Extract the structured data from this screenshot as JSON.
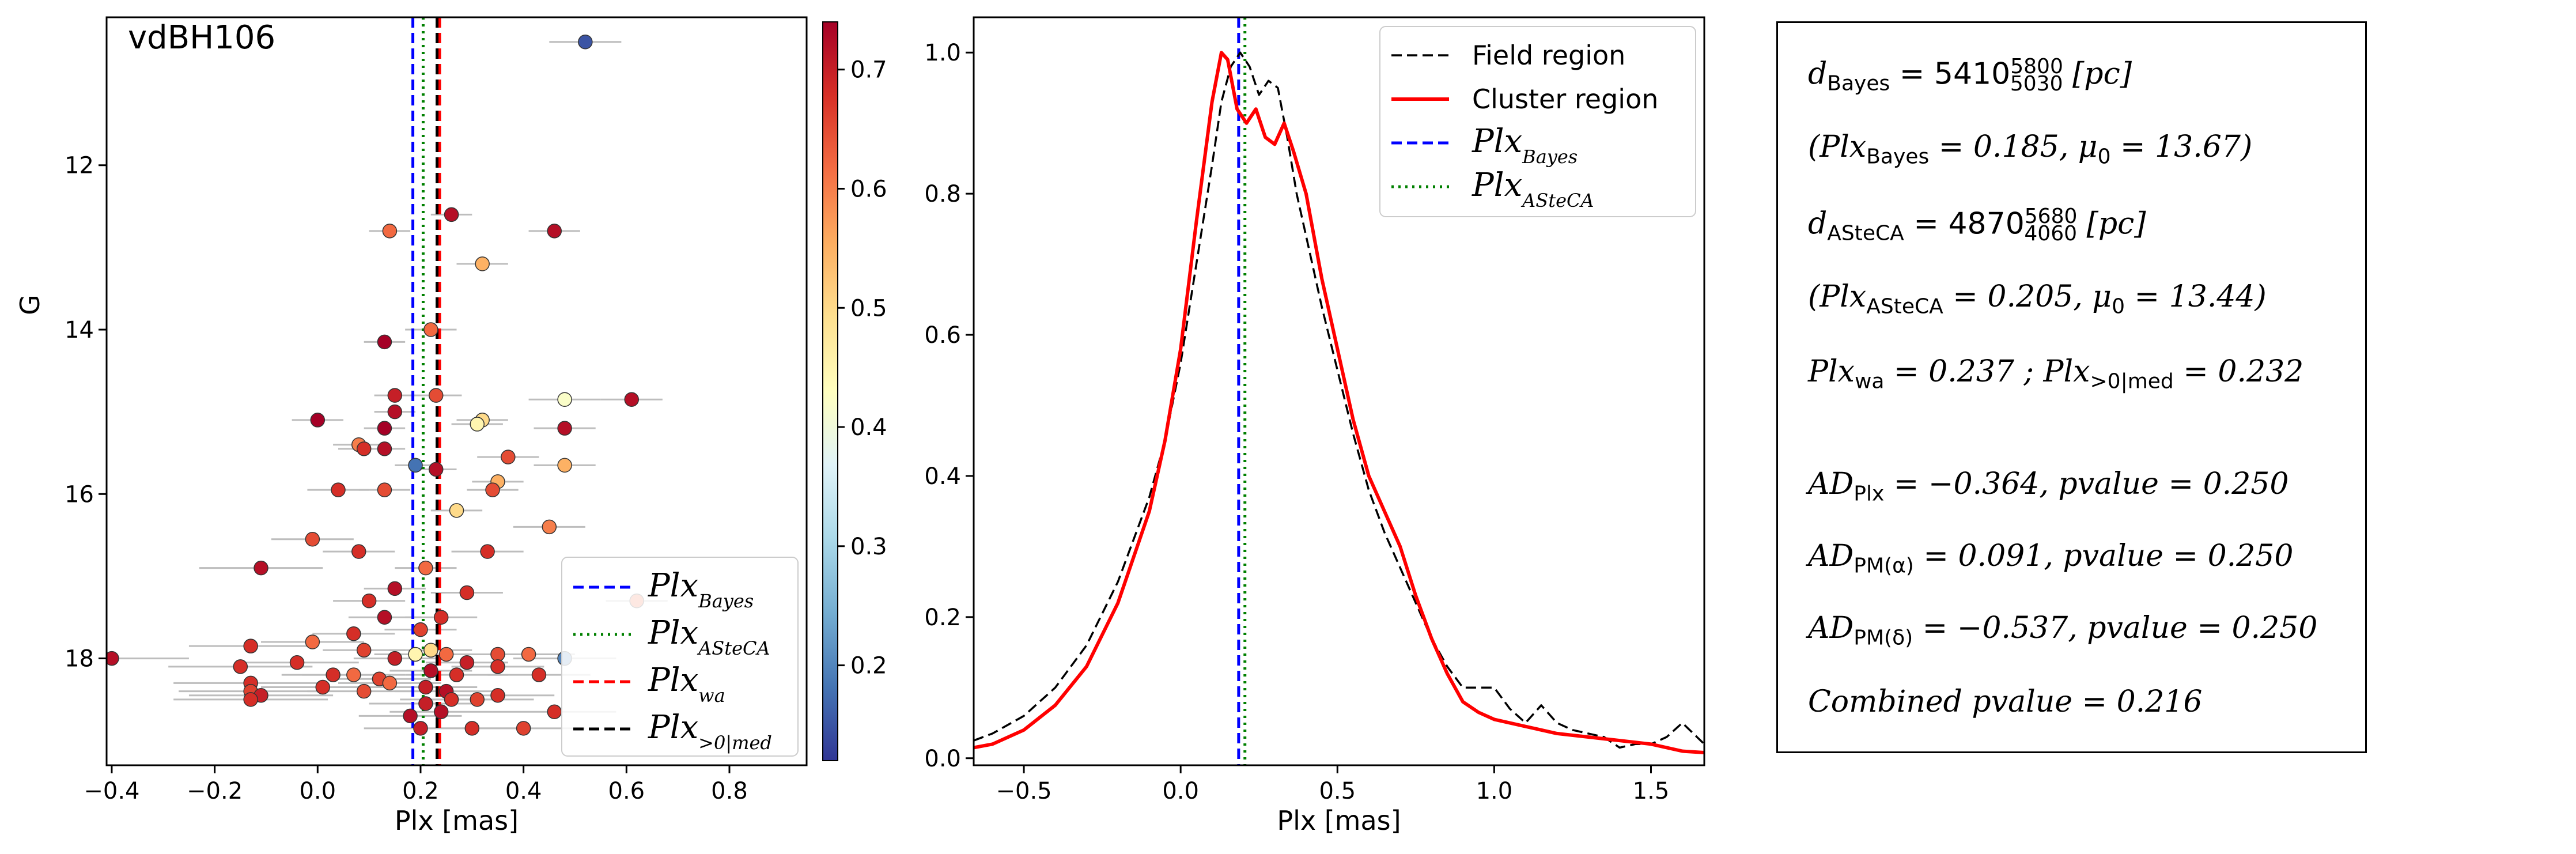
{
  "chart_data": [
    {
      "type": "scatter",
      "annotation": "vdBH106",
      "xlabel": "Plx [mas]",
      "ylabel": "G",
      "xlim": [
        -0.41,
        0.95
      ],
      "ylim": [
        19.3,
        10.2
      ],
      "y_inverted": true,
      "xticks": [
        "-0.4",
        "-0.2",
        "0.0",
        "0.2",
        "0.4",
        "0.6",
        "0.8"
      ],
      "yticks": [
        "12",
        "14",
        "16",
        "18"
      ],
      "colorbar": {
        "ticks": [
          "0.2",
          "0.3",
          "0.4",
          "0.5",
          "0.6",
          "0.7"
        ],
        "range": [
          0.12,
          0.74
        ],
        "colormap": "RdYlBu_r"
      },
      "vlines": [
        {
          "name": "Plx_Bayes",
          "x": 0.185,
          "color": "#0000ff",
          "style": "dashed"
        },
        {
          "name": "Plx_ASteCA",
          "x": 0.205,
          "color": "#008000",
          "style": "dotted"
        },
        {
          "name": "Plx_wa",
          "x": 0.237,
          "color": "#ff0000",
          "style": "dashed"
        },
        {
          "name": "Plx_>0|med",
          "x": 0.232,
          "color": "#000000",
          "style": "dashed"
        }
      ],
      "legend_placement": "lower-right",
      "points": [
        {
          "x": 0.52,
          "y": 10.5,
          "err": 0.07,
          "c": 0.15
        },
        {
          "x": 0.26,
          "y": 12.6,
          "err": 0.04,
          "c": 0.72
        },
        {
          "x": 0.46,
          "y": 12.8,
          "err": 0.05,
          "c": 0.72
        },
        {
          "x": 0.14,
          "y": 12.8,
          "err": 0.04,
          "c": 0.62
        },
        {
          "x": 0.32,
          "y": 13.2,
          "err": 0.05,
          "c": 0.55
        },
        {
          "x": 0.22,
          "y": 14.0,
          "err": 0.05,
          "c": 0.62
        },
        {
          "x": 0.13,
          "y": 14.15,
          "err": 0.04,
          "c": 0.74
        },
        {
          "x": 0.61,
          "y": 14.85,
          "err": 0.06,
          "c": 0.72
        },
        {
          "x": 0.48,
          "y": 14.85,
          "err": 0.07,
          "c": 0.42
        },
        {
          "x": 0.15,
          "y": 14.8,
          "err": 0.04,
          "c": 0.7
        },
        {
          "x": 0.23,
          "y": 14.8,
          "err": 0.05,
          "c": 0.65
        },
        {
          "x": 0.15,
          "y": 15.0,
          "err": 0.04,
          "c": 0.72
        },
        {
          "x": 0.32,
          "y": 15.1,
          "err": 0.05,
          "c": 0.5
        },
        {
          "x": 0.31,
          "y": 15.15,
          "err": 0.05,
          "c": 0.45
        },
        {
          "x": 0.0,
          "y": 15.1,
          "err": 0.05,
          "c": 0.74
        },
        {
          "x": 0.13,
          "y": 15.2,
          "err": 0.04,
          "c": 0.74
        },
        {
          "x": 0.48,
          "y": 15.2,
          "err": 0.06,
          "c": 0.72
        },
        {
          "x": 0.08,
          "y": 15.4,
          "err": 0.05,
          "c": 0.6
        },
        {
          "x": 0.09,
          "y": 15.45,
          "err": 0.05,
          "c": 0.68
        },
        {
          "x": 0.13,
          "y": 15.45,
          "err": 0.04,
          "c": 0.72
        },
        {
          "x": 0.37,
          "y": 15.55,
          "err": 0.06,
          "c": 0.65
        },
        {
          "x": 0.48,
          "y": 15.65,
          "err": 0.06,
          "c": 0.55
        },
        {
          "x": 0.19,
          "y": 15.65,
          "err": 0.04,
          "c": 0.18
        },
        {
          "x": 0.23,
          "y": 15.7,
          "err": 0.04,
          "c": 0.72
        },
        {
          "x": 0.35,
          "y": 15.85,
          "err": 0.05,
          "c": 0.55
        },
        {
          "x": 0.34,
          "y": 15.95,
          "err": 0.05,
          "c": 0.65
        },
        {
          "x": 0.04,
          "y": 15.95,
          "err": 0.06,
          "c": 0.68
        },
        {
          "x": 0.13,
          "y": 15.95,
          "err": 0.05,
          "c": 0.65
        },
        {
          "x": 0.27,
          "y": 16.2,
          "err": 0.05,
          "c": 0.5
        },
        {
          "x": 0.45,
          "y": 16.4,
          "err": 0.07,
          "c": 0.6
        },
        {
          "x": -0.01,
          "y": 16.55,
          "err": 0.08,
          "c": 0.65
        },
        {
          "x": 0.08,
          "y": 16.7,
          "err": 0.07,
          "c": 0.68
        },
        {
          "x": 0.33,
          "y": 16.7,
          "err": 0.07,
          "c": 0.68
        },
        {
          "x": -0.11,
          "y": 16.9,
          "err": 0.12,
          "c": 0.72
        },
        {
          "x": 0.21,
          "y": 16.9,
          "err": 0.06,
          "c": 0.62
        },
        {
          "x": 0.15,
          "y": 17.15,
          "err": 0.06,
          "c": 0.72
        },
        {
          "x": 0.29,
          "y": 17.2,
          "err": 0.07,
          "c": 0.68
        },
        {
          "x": 0.1,
          "y": 17.3,
          "err": 0.07,
          "c": 0.68
        },
        {
          "x": 0.24,
          "y": 17.5,
          "err": 0.07,
          "c": 0.68
        },
        {
          "x": 0.13,
          "y": 17.5,
          "err": 0.07,
          "c": 0.72
        },
        {
          "x": 0.2,
          "y": 17.65,
          "err": 0.07,
          "c": 0.66
        },
        {
          "x": 0.07,
          "y": 17.7,
          "err": 0.08,
          "c": 0.68
        },
        {
          "x": -0.01,
          "y": 17.8,
          "err": 0.1,
          "c": 0.62
        },
        {
          "x": -0.13,
          "y": 17.85,
          "err": 0.12,
          "c": 0.68
        },
        {
          "x": 0.09,
          "y": 17.9,
          "err": 0.08,
          "c": 0.66
        },
        {
          "x": 0.22,
          "y": 17.9,
          "err": 0.08,
          "c": 0.5
        },
        {
          "x": 0.25,
          "y": 17.95,
          "err": 0.08,
          "c": 0.62
        },
        {
          "x": 0.19,
          "y": 17.95,
          "err": 0.08,
          "c": 0.45
        },
        {
          "x": 0.35,
          "y": 17.95,
          "err": 0.08,
          "c": 0.65
        },
        {
          "x": 0.41,
          "y": 17.95,
          "err": 0.09,
          "c": 0.62
        },
        {
          "x": 0.15,
          "y": 18.0,
          "err": 0.08,
          "c": 0.7
        },
        {
          "x": -0.4,
          "y": 18.0,
          "err": 0.15,
          "c": 0.72
        },
        {
          "x": 0.29,
          "y": 18.05,
          "err": 0.08,
          "c": 0.7
        },
        {
          "x": -0.04,
          "y": 18.05,
          "err": 0.12,
          "c": 0.68
        },
        {
          "x": 0.35,
          "y": 18.1,
          "err": 0.09,
          "c": 0.68
        },
        {
          "x": 0.22,
          "y": 18.15,
          "err": 0.08,
          "c": 0.72
        },
        {
          "x": -0.15,
          "y": 18.1,
          "err": 0.14,
          "c": 0.68
        },
        {
          "x": 0.07,
          "y": 18.2,
          "err": 0.1,
          "c": 0.62
        },
        {
          "x": 0.03,
          "y": 18.2,
          "err": 0.1,
          "c": 0.68
        },
        {
          "x": 0.12,
          "y": 18.25,
          "err": 0.1,
          "c": 0.66
        },
        {
          "x": 0.27,
          "y": 18.2,
          "err": 0.1,
          "c": 0.68
        },
        {
          "x": 0.43,
          "y": 18.2,
          "err": 0.1,
          "c": 0.68
        },
        {
          "x": -0.13,
          "y": 18.3,
          "err": 0.15,
          "c": 0.68
        },
        {
          "x": 0.14,
          "y": 18.3,
          "err": 0.1,
          "c": 0.62
        },
        {
          "x": 0.01,
          "y": 18.35,
          "err": 0.12,
          "c": 0.68
        },
        {
          "x": 0.21,
          "y": 18.35,
          "err": 0.1,
          "c": 0.7
        },
        {
          "x": 0.25,
          "y": 18.4,
          "err": 0.1,
          "c": 0.72
        },
        {
          "x": -0.13,
          "y": 18.4,
          "err": 0.14,
          "c": 0.66
        },
        {
          "x": -0.11,
          "y": 18.45,
          "err": 0.14,
          "c": 0.7
        },
        {
          "x": 0.09,
          "y": 18.4,
          "err": 0.11,
          "c": 0.65
        },
        {
          "x": 0.26,
          "y": 18.5,
          "err": 0.1,
          "c": 0.68
        },
        {
          "x": -0.13,
          "y": 18.5,
          "err": 0.15,
          "c": 0.68
        },
        {
          "x": 0.35,
          "y": 18.45,
          "err": 0.11,
          "c": 0.68
        },
        {
          "x": 0.31,
          "y": 18.5,
          "err": 0.11,
          "c": 0.66
        },
        {
          "x": 0.21,
          "y": 18.55,
          "err": 0.11,
          "c": 0.7
        },
        {
          "x": 0.24,
          "y": 18.65,
          "err": 0.1,
          "c": 0.72
        },
        {
          "x": 0.46,
          "y": 18.65,
          "err": 0.12,
          "c": 0.68
        },
        {
          "x": 0.18,
          "y": 18.7,
          "err": 0.1,
          "c": 0.72
        },
        {
          "x": 0.3,
          "y": 18.85,
          "err": 0.11,
          "c": 0.68
        },
        {
          "x": 0.4,
          "y": 18.85,
          "err": 0.12,
          "c": 0.66
        },
        {
          "x": 0.2,
          "y": 18.85,
          "err": 0.11,
          "c": 0.7
        },
        {
          "x": 0.62,
          "y": 17.3,
          "err": 0.06,
          "c": 0.62
        },
        {
          "x": 0.48,
          "y": 18.0,
          "err": 0.1,
          "c": 0.2
        }
      ],
      "legend": [
        "Plx",
        "Plx",
        "Plx",
        "Plx"
      ],
      "legend_subscripts": [
        "Bayes",
        "ASteCA",
        "wa",
        ">0|med"
      ]
    },
    {
      "type": "line",
      "xlabel": "Plx [mas]",
      "xlim": [
        -0.66,
        1.67
      ],
      "ylim": [
        -0.01,
        1.05
      ],
      "xticks": [
        "-0.5",
        "0.0",
        "0.5",
        "1.0",
        "1.5"
      ],
      "yticks": [
        "0.0",
        "0.2",
        "0.4",
        "0.6",
        "0.8",
        "1.0"
      ],
      "legend_placement": "top-right",
      "legend": [
        "Field region",
        "Cluster region",
        "Plx",
        "Plx"
      ],
      "legend_subscripts": [
        "",
        "",
        "Bayes",
        "ASteCA"
      ],
      "vlines": [
        {
          "name": "Plx_Bayes",
          "x": 0.185,
          "color": "#0000ff",
          "style": "dashed"
        },
        {
          "name": "Plx_ASteCA",
          "x": 0.205,
          "color": "#008000",
          "style": "dotted"
        }
      ],
      "series": [
        {
          "name": "Field region",
          "color": "#000000",
          "style": "dashed",
          "x": [
            -0.66,
            -0.6,
            -0.5,
            -0.4,
            -0.3,
            -0.2,
            -0.1,
            -0.05,
            0.0,
            0.05,
            0.1,
            0.13,
            0.16,
            0.19,
            0.22,
            0.25,
            0.28,
            0.31,
            0.34,
            0.37,
            0.4,
            0.45,
            0.5,
            0.55,
            0.6,
            0.65,
            0.7,
            0.75,
            0.8,
            0.85,
            0.9,
            0.95,
            1.0,
            1.05,
            1.1,
            1.15,
            1.2,
            1.25,
            1.3,
            1.35,
            1.4,
            1.45,
            1.5,
            1.55,
            1.6,
            1.67
          ],
          "y": [
            0.025,
            0.035,
            0.06,
            0.1,
            0.16,
            0.25,
            0.37,
            0.45,
            0.56,
            0.7,
            0.84,
            0.93,
            0.98,
            1.0,
            0.98,
            0.94,
            0.96,
            0.95,
            0.88,
            0.8,
            0.74,
            0.64,
            0.55,
            0.46,
            0.38,
            0.32,
            0.27,
            0.22,
            0.17,
            0.13,
            0.1,
            0.1,
            0.1,
            0.07,
            0.05,
            0.075,
            0.05,
            0.04,
            0.035,
            0.03,
            0.015,
            0.02,
            0.02,
            0.03,
            0.05,
            0.02
          ]
        },
        {
          "name": "Cluster region",
          "color": "#ff0000",
          "style": "solid",
          "x": [
            -0.66,
            -0.6,
            -0.5,
            -0.4,
            -0.3,
            -0.2,
            -0.1,
            -0.05,
            0.0,
            0.05,
            0.1,
            0.13,
            0.15,
            0.18,
            0.21,
            0.24,
            0.27,
            0.3,
            0.33,
            0.36,
            0.4,
            0.45,
            0.5,
            0.55,
            0.6,
            0.65,
            0.7,
            0.75,
            0.8,
            0.85,
            0.9,
            0.95,
            1.0,
            1.1,
            1.2,
            1.3,
            1.4,
            1.5,
            1.6,
            1.67
          ],
          "y": [
            0.015,
            0.02,
            0.04,
            0.075,
            0.13,
            0.22,
            0.35,
            0.45,
            0.58,
            0.76,
            0.93,
            1.0,
            0.99,
            0.92,
            0.9,
            0.92,
            0.88,
            0.87,
            0.9,
            0.86,
            0.8,
            0.68,
            0.58,
            0.48,
            0.4,
            0.35,
            0.3,
            0.23,
            0.17,
            0.12,
            0.08,
            0.065,
            0.055,
            0.045,
            0.035,
            0.03,
            0.025,
            0.02,
            0.01,
            0.008
          ]
        }
      ]
    }
  ],
  "info_panel": {
    "lines": [
      {
        "pre": "d",
        "sub": "Bayes",
        "text": " = 5410",
        "sup2": "5800",
        "sub2": "5030",
        "post": " [pc]"
      },
      {
        "text": "(Plx",
        "sub": "Bayes",
        "post": " = 0.185,  μ",
        "sub2": "0",
        "post2": " = 13.67)"
      },
      {
        "pre": "d",
        "sub": "ASteCA",
        "text": " = 4870",
        "sup2": "5680",
        "sub2": "4060",
        "post": " [pc]"
      },
      {
        "text": "(Plx",
        "sub": "ASteCA",
        "post": " = 0.205,  μ",
        "sub2": "0",
        "post2": " = 13.44)"
      },
      {
        "text": "Plx",
        "sub": "wa",
        "post": " = 0.237 ; Plx",
        "sub2": ">0|med",
        "post2": " = 0.232"
      },
      {
        "text": "AD",
        "sub": "Plx",
        "post": " = −0.364,  pvalue = 0.250"
      },
      {
        "text": "AD",
        "sub": "PM(α)",
        "post": " = 0.091,  pvalue = 0.250"
      },
      {
        "text": "AD",
        "sub": "PM(δ)",
        "post": " = −0.537,  pvalue = 0.250"
      },
      {
        "text": "Combined pvalue = 0.216"
      }
    ]
  }
}
